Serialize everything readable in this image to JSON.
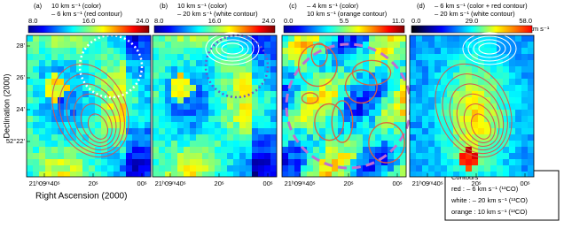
{
  "panels": [
    {
      "label": "(a)",
      "title_lines": [
        "10 km s⁻¹ (color)",
        "– 6 km s⁻¹ (red contour)"
      ],
      "colorbar_ticks": [
        "8.0",
        "16.0",
        "24.0"
      ]
    },
    {
      "label": "(b)",
      "title_lines": [
        "10 km s⁻¹ (color)",
        "– 20 km s⁻¹ (white contour)"
      ],
      "colorbar_ticks": [
        "8.0",
        "16.0",
        "24.0"
      ]
    },
    {
      "label": "(c)",
      "title_lines": [
        "– 4 km s⁻¹ (color)",
        "10 km s⁻¹ (orange contour)"
      ],
      "colorbar_ticks": [
        "0.0",
        "5.5",
        "11.0"
      ]
    },
    {
      "label": "(d)",
      "title_lines": [
        "– 6 km s⁻¹ (color + red contour)",
        "– 20 km s⁻¹ (white contour)"
      ],
      "colorbar_ticks": [
        "0.0",
        "29.0",
        "58.0"
      ]
    }
  ],
  "colorbar_unit": "K km s⁻¹",
  "axes": {
    "x_label": "Right Ascension (2000)",
    "y_label": "Declination (2000)",
    "x_ticks": [
      "21ʰ09ᵐ40ˢ",
      "20ˢ",
      "00ˢ"
    ],
    "y_ticks": [
      "28'",
      "26'",
      "24'",
      "52°22'"
    ]
  },
  "contours_box": {
    "title": "Contours",
    "lines": [
      "red : – 6 km s⁻¹ (¹³CO)",
      "white : – 20 km s⁻¹ (¹³CO)",
      "orange : 10 km s⁻¹ (¹³CO)"
    ]
  }
}
